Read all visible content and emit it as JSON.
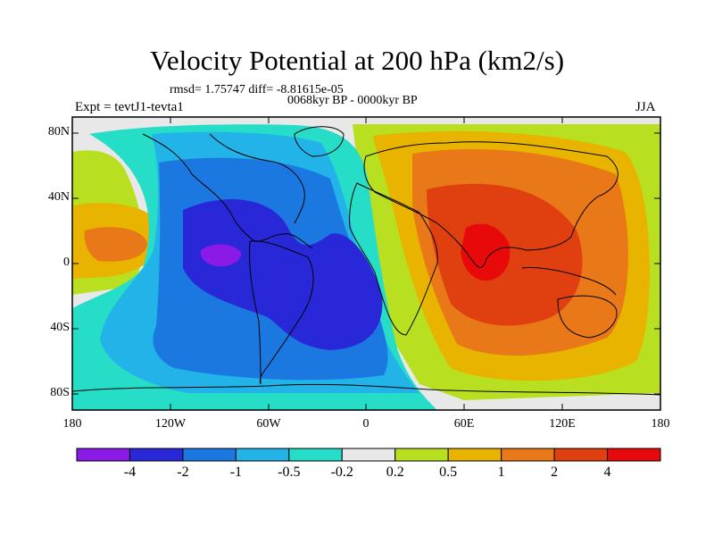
{
  "title": "Velocity Potential at 200 hPa (km2/s)",
  "stats": "rmsd= 1.75747 diff= -8.81615e-05",
  "period": "0068kyr BP - 0000kyr BP",
  "experiment": "Expt = tevtJ1-tevta1",
  "season": "JJA",
  "lat_labels": [
    "80N",
    "40N",
    "0",
    "40S",
    "80S"
  ],
  "lon_labels": [
    "180",
    "120W",
    "60W",
    "0",
    "60E",
    "120E",
    "180"
  ],
  "colorbar": {
    "labels": [
      "-4",
      "-2",
      "-1",
      "-0.5",
      "-0.2",
      "0.2",
      "0.5",
      "1",
      "2",
      "4"
    ],
    "colors": [
      "#8a1ae6",
      "#2828d8",
      "#1a78e0",
      "#22b4e8",
      "#26ddc8",
      "#e8e8e8",
      "#b8e020",
      "#e8b400",
      "#e87818",
      "#e04010",
      "#e80a0a"
    ]
  }
}
